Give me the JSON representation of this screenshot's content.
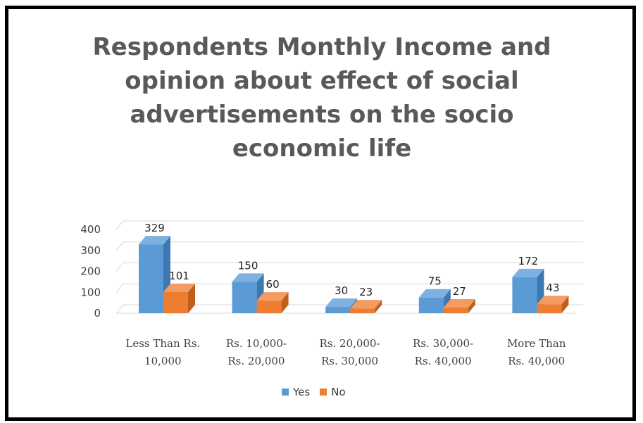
{
  "chart_data": {
    "type": "bar",
    "title": "Respondents Monthly Income and opinion about effect of social advertisements on the socio economic life",
    "title_lines": [
      "Respondents Monthly Income and",
      "opinion about effect of social",
      "advertisements on the socio",
      "economic life"
    ],
    "categories": [
      [
        "Less Than Rs.",
        "10,000"
      ],
      [
        "Rs. 10,000-",
        "Rs. 20,000"
      ],
      [
        "Rs. 20,000-",
        "Rs. 30,000"
      ],
      [
        "Rs. 30,000-",
        "Rs. 40,000"
      ],
      [
        "More Than",
        "Rs. 40,000"
      ]
    ],
    "series": [
      {
        "name": "Yes",
        "values": [
          329,
          150,
          30,
          75,
          172
        ],
        "color": "#5B9BD5",
        "side": "#3E78B2",
        "top": "#7FB1E0"
      },
      {
        "name": "No",
        "values": [
          101,
          60,
          23,
          27,
          43
        ],
        "color": "#ED7D31",
        "side": "#C05F1C",
        "top": "#F29C63"
      }
    ],
    "ylim": [
      0,
      400
    ],
    "yticks": [
      0,
      100,
      200,
      300,
      400
    ],
    "grid": true,
    "legend_position": "bottom",
    "three_d": true
  }
}
